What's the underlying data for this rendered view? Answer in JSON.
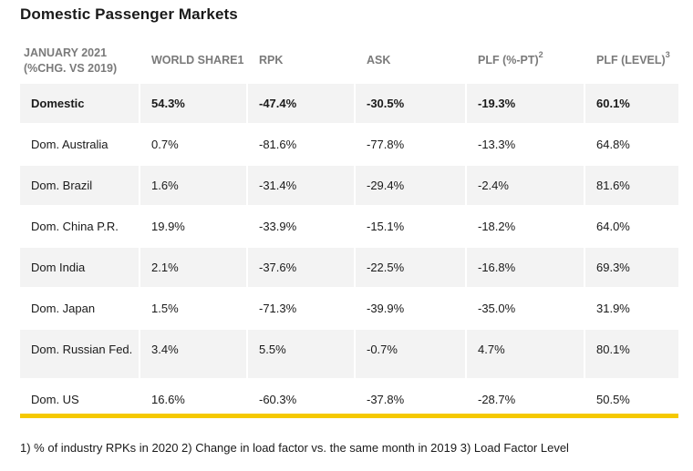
{
  "title": "Domestic Passenger Markets",
  "table": {
    "headers": [
      {
        "line1": "JANUARY 2021",
        "line2": "(%CHG. VS 2019)",
        "sup": ""
      },
      {
        "line1": "WORLD SHARE1",
        "line2": "",
        "sup": ""
      },
      {
        "line1": "RPK",
        "line2": "",
        "sup": ""
      },
      {
        "line1": "ASK",
        "line2": "",
        "sup": ""
      },
      {
        "line1": "PLF (%-PT)",
        "line2": "",
        "sup": "2"
      },
      {
        "line1": "PLF (LEVEL)",
        "line2": "",
        "sup": "3"
      }
    ],
    "rows": [
      [
        "Domestic",
        "54.3%",
        "-47.4%",
        "-30.5%",
        "-19.3%",
        "60.1%"
      ],
      [
        "Dom. Australia",
        "0.7%",
        "-81.6%",
        "-77.8%",
        "-13.3%",
        "64.8%"
      ],
      [
        "Dom. Brazil",
        "1.6%",
        "-31.4%",
        "-29.4%",
        "-2.4%",
        "81.6%"
      ],
      [
        "Dom. China P.R.",
        "19.9%",
        "-33.9%",
        "-15.1%",
        "-18.2%",
        "64.0%"
      ],
      [
        "Dom India",
        "2.1%",
        "-37.6%",
        "-22.5%",
        "-16.8%",
        "69.3%"
      ],
      [
        "Dom. Japan",
        "1.5%",
        "-71.3%",
        "-39.9%",
        "-35.0%",
        "31.9%"
      ],
      [
        "Dom. Russian Fed.",
        "3.4%",
        "5.5%",
        "-0.7%",
        "4.7%",
        "80.1%"
      ],
      [
        "Dom. US",
        "16.6%",
        "-60.3%",
        "-37.8%",
        "-28.7%",
        "50.5%"
      ]
    ]
  },
  "footnote": "1) % of industry RPKs in 2020   2) Change in load factor vs. the same month in 2019   3) Load Factor Level",
  "colors": {
    "accent_rule": "#f5c900",
    "row_shade": "#f3f3f3",
    "header_text": "#7a7a7a"
  }
}
